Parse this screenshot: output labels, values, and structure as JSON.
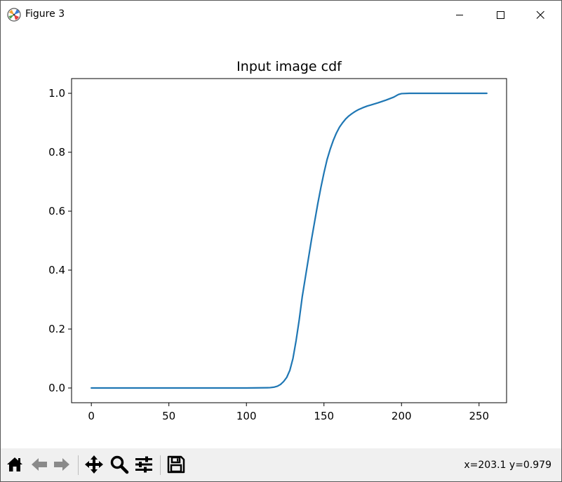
{
  "window": {
    "title": "Figure 3",
    "icon": "matplotlib-logo-icon",
    "controls": [
      "minimize-icon",
      "maximize-icon",
      "close-icon"
    ]
  },
  "toolbar": {
    "tools": [
      "home-icon",
      "back-arrow-icon",
      "forward-arrow-icon",
      "pan-move-icon",
      "zoom-magnifier-icon",
      "configure-subplots-icon",
      "save-floppy-icon"
    ],
    "coords_readout": "x=203.1 y=0.979"
  },
  "chart_data": {
    "type": "line",
    "title": "Input image cdf",
    "xlabel": "",
    "ylabel": "",
    "xlim": [
      -12.75,
      267.75
    ],
    "ylim": [
      -0.05,
      1.05
    ],
    "xticks": [
      0,
      50,
      100,
      150,
      200,
      250
    ],
    "xtick_labels": [
      "0",
      "50",
      "100",
      "150",
      "200",
      "250"
    ],
    "yticks": [
      0.0,
      0.2,
      0.4,
      0.6,
      0.8,
      1.0
    ],
    "ytick_labels": [
      "0.0",
      "0.2",
      "0.4",
      "0.6",
      "0.8",
      "1.0"
    ],
    "grid": false,
    "line_color": "#1f77b4",
    "series": [
      {
        "x": [
          0,
          50,
          100,
          115,
          118,
          120,
          122,
          124,
          126,
          128,
          130,
          132,
          134,
          136,
          138,
          140,
          142,
          144,
          146,
          148,
          150,
          152,
          154,
          156,
          158,
          160,
          162,
          164,
          166,
          168,
          170,
          172,
          175,
          178,
          180,
          185,
          190,
          195,
          198,
          200,
          205,
          210,
          220,
          230,
          240,
          250,
          255
        ],
        "y": [
          0.0,
          0.0,
          0.0,
          0.001,
          0.003,
          0.006,
          0.012,
          0.022,
          0.036,
          0.06,
          0.1,
          0.16,
          0.23,
          0.31,
          0.375,
          0.44,
          0.505,
          0.565,
          0.625,
          0.68,
          0.73,
          0.775,
          0.81,
          0.84,
          0.865,
          0.885,
          0.9,
          0.913,
          0.923,
          0.931,
          0.938,
          0.944,
          0.951,
          0.957,
          0.96,
          0.968,
          0.977,
          0.987,
          0.996,
          0.999,
          1.0,
          1.0,
          1.0,
          1.0,
          1.0,
          1.0,
          1.0
        ]
      }
    ]
  }
}
